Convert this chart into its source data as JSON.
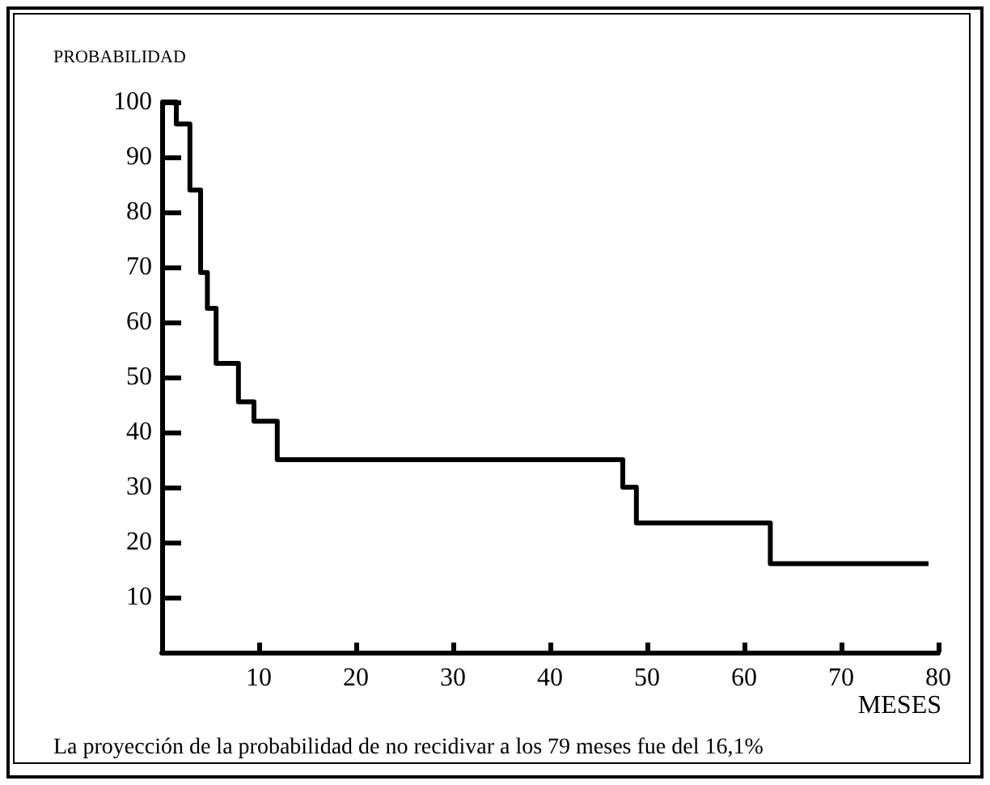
{
  "chart_data": {
    "type": "step",
    "ylabel": "PROBABILIDAD",
    "xlabel": "MESES",
    "annotations": [
      "La proyección de la probabilidad de no recidivar a los 79 meses fue del 16,1%"
    ],
    "x": [
      0,
      1.5,
      2.9,
      4,
      4.7,
      5.6,
      7.9,
      9.5,
      11.9,
      47.5,
      48.9,
      62.7,
      79
    ],
    "series": [
      {
        "color": "#000000",
        "values": [
          100,
          96,
          84,
          69,
          62.5,
          52.5,
          45.5,
          42,
          35,
          30,
          23.5,
          16.1,
          16.1
        ]
      }
    ],
    "xlim": [
      0,
      80
    ],
    "xticks": [
      10,
      20,
      30,
      40,
      50,
      60,
      70,
      80
    ],
    "ylim": [
      0,
      100
    ],
    "yticks": [
      10,
      20,
      30,
      40,
      50,
      60,
      70,
      80,
      90,
      100
    ],
    "marker": "none",
    "line_style": "solid"
  }
}
